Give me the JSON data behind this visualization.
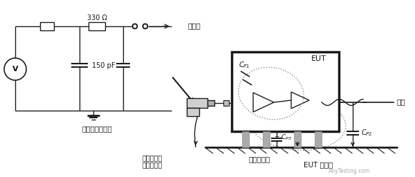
{
  "bg_color": "#ffffff",
  "line_color": "#1a1a1a",
  "dashed_color": "#888888",
  "text_color": "#111111",
  "label_330": "330 Ω",
  "label_150": "150 pF",
  "label_gun": "静电放电枪原理",
  "label_discharge": "放电头",
  "label_cable": "电缆",
  "label_eut": "EUT",
  "label_cp1": "C",
  "label_cp1_sub": "P1",
  "label_cp3": "C",
  "label_cp3_sub": "P3",
  "label_cp2": "C",
  "label_cp2_sub": "P2",
  "label_ref_gnd": "参考接地板",
  "label_eut_gnd": "EUT 接地线",
  "label_gun_gnd_1": "静电放电枪",
  "label_gun_gnd_2": "上的接地线",
  "watermark": "AnyTesting.com"
}
